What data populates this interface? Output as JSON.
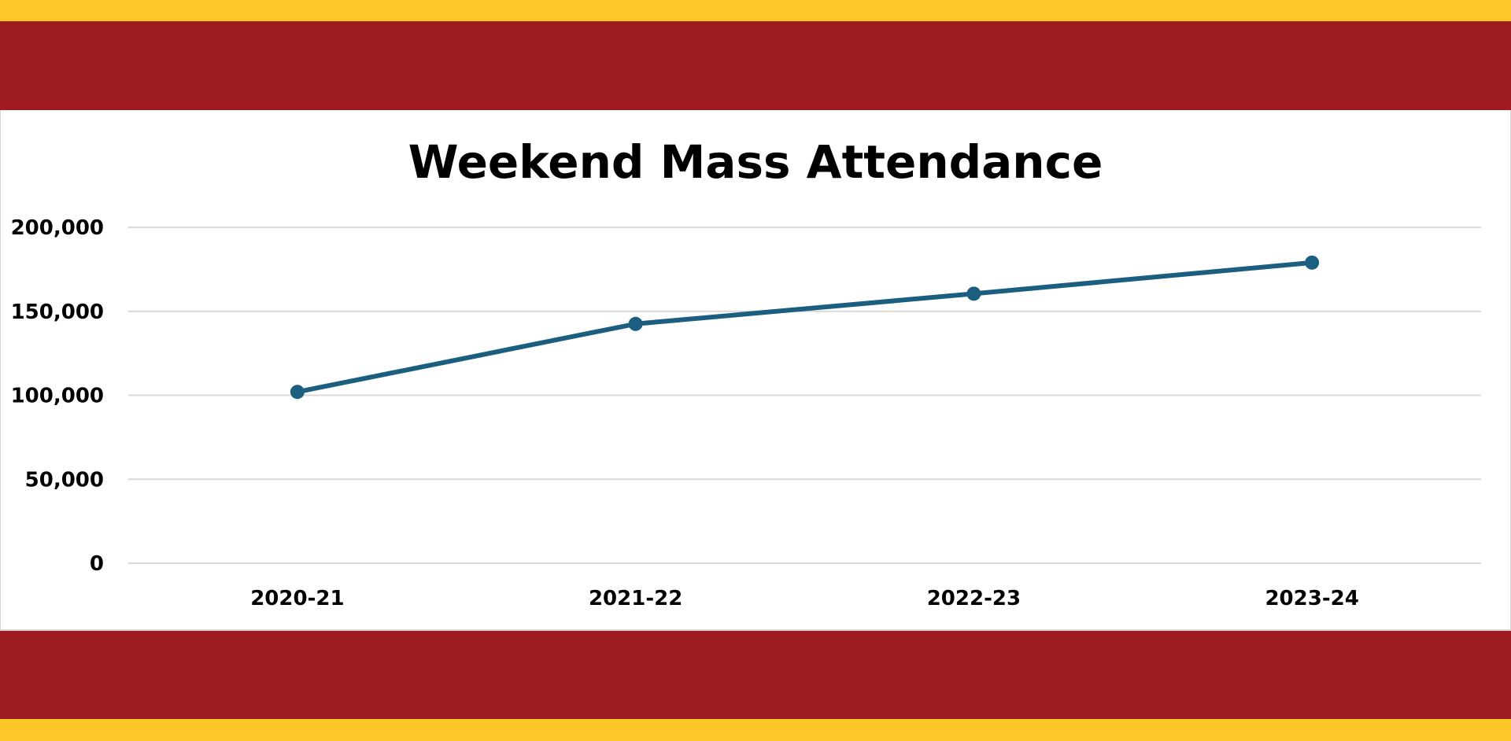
{
  "chart_data": {
    "type": "line",
    "title": "Weekend Mass Attendance",
    "xlabel": "",
    "ylabel": "",
    "categories": [
      "2020-21",
      "2021-22",
      "2022-23",
      "2023-24"
    ],
    "series": [
      {
        "values": [
          102000,
          142500,
          160500,
          179000
        ]
      }
    ],
    "ylim": [
      0,
      200000
    ],
    "y_ticks": [
      "0",
      "50,000",
      "100,000",
      "150,000",
      "200,000"
    ],
    "grid": "horizontal",
    "colors": {
      "line": "#1B5E80",
      "grid": "#d9d9d9",
      "band_red": "#9E1C20",
      "band_gold": "#FFC629"
    }
  }
}
